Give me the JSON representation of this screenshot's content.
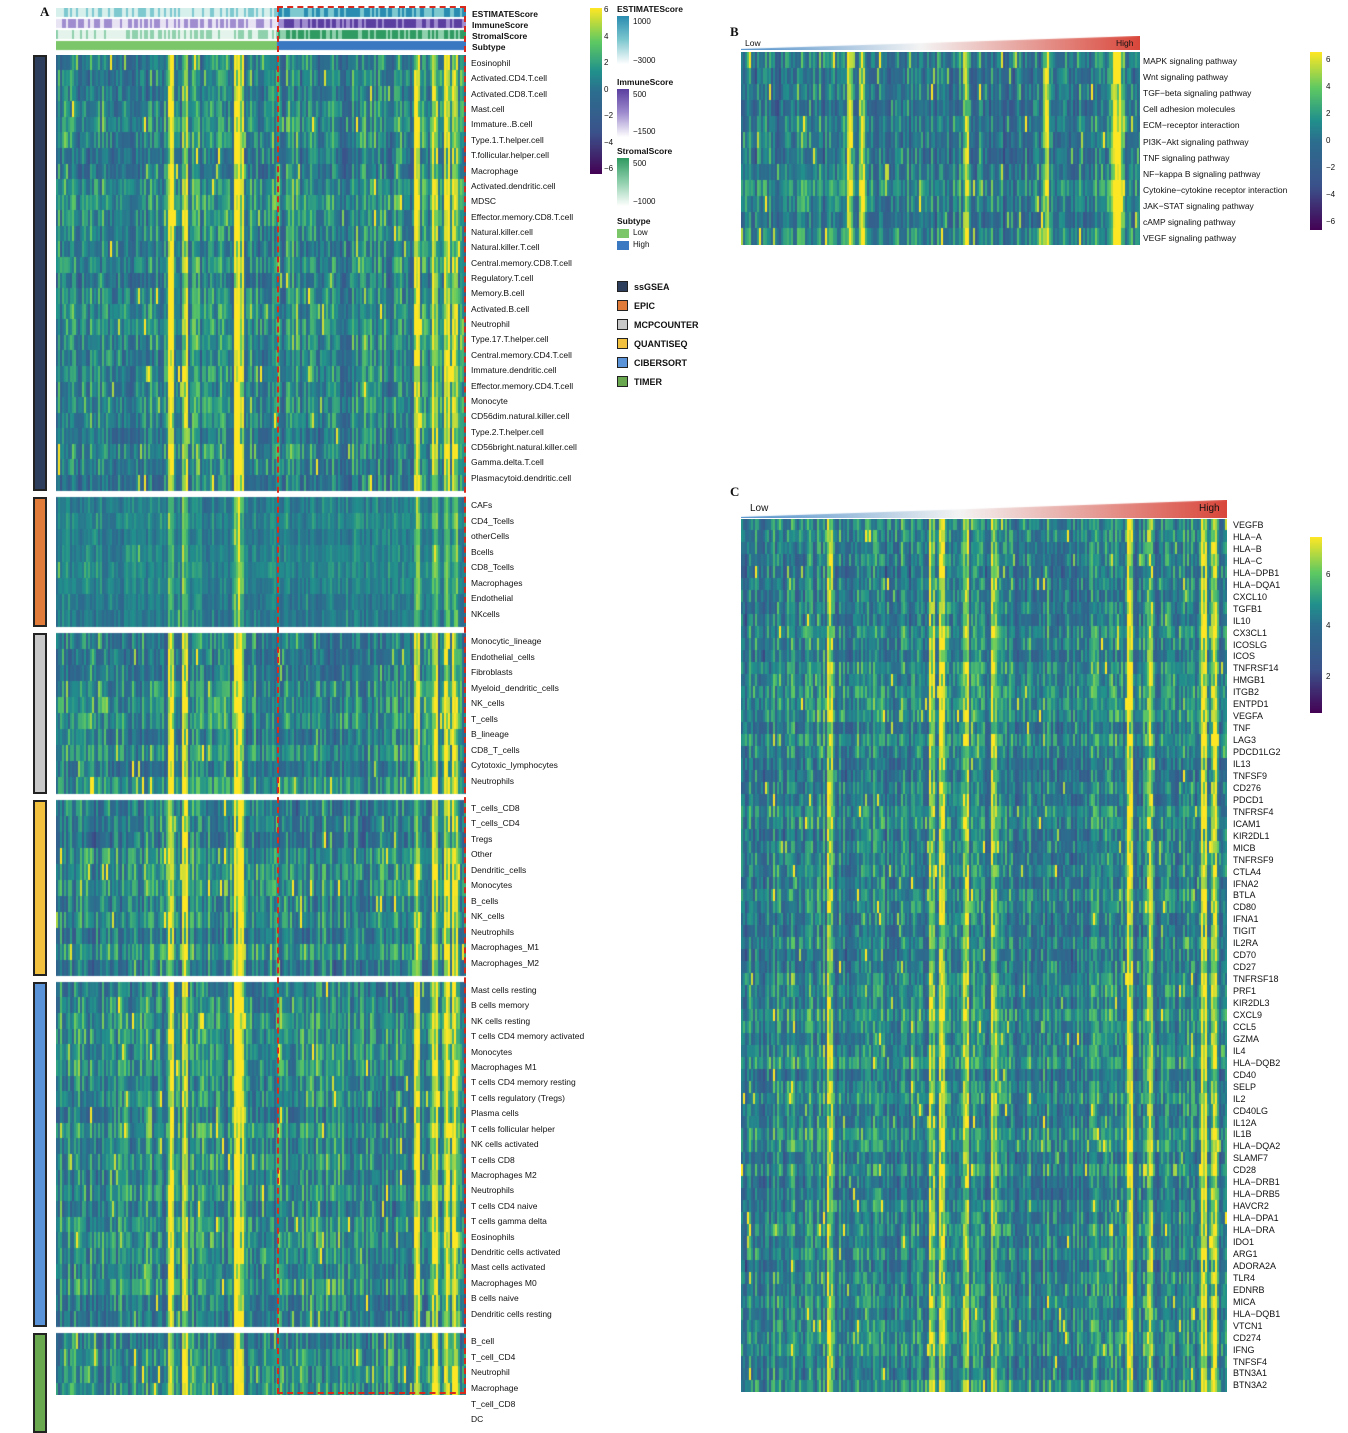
{
  "panels": {
    "A": {
      "letter": "A",
      "annotation_rows": [
        "ESTIMATEScore",
        "ImmuneScore",
        "StromalScore",
        "Subtype"
      ],
      "groups": [
        {
          "method": "ssGSEA",
          "color": "#2c3e5c",
          "rows": [
            "Eosinophil",
            "Activated.CD4.T.cell",
            "Activated.CD8.T.cell",
            "Mast.cell",
            "Immature..B.cell",
            "Type.1.T.helper.cell",
            "T.follicular.helper.cell",
            "Macrophage",
            "Activated.dendritic.cell",
            "MDSC",
            "Effector.memory.CD8.T.cell",
            "Natural.killer.cell",
            "Natural.killer.T.cell",
            "Central.memory.CD8.T.cell",
            "Regulatory.T.cell",
            "Memory.B.cell",
            "Activated.B.cell",
            "Neutrophil",
            "Type.17.T.helper.cell",
            "Central.memory.CD4.T.cell",
            "Immature.dendritic.cell",
            "Effector.memory.CD4.T.cell",
            "Monocyte",
            "CD56dim.natural.killer.cell",
            "Type.2.T.helper.cell",
            "CD56bright.natural.killer.cell",
            "Gamma.delta.T.cell",
            "Plasmacytoid.dendritic.cell"
          ]
        },
        {
          "method": "EPIC",
          "color": "#e07b39",
          "rows": [
            "CAFs",
            "CD4_Tcells",
            "otherCells",
            "Bcells",
            "CD8_Tcells",
            "Macrophages",
            "Endothelial",
            "NKcells"
          ]
        },
        {
          "method": "MCPCOUNTER",
          "color": "#c8c8c8",
          "rows": [
            "Monocytic_lineage",
            "Endothelial_cells",
            "Fibroblasts",
            "Myeloid_dendritic_cells",
            "NK_cells",
            "T_cells",
            "B_lineage",
            "CD8_T_cells",
            "Cytotoxic_lymphocytes",
            "Neutrophils"
          ]
        },
        {
          "method": "QUANTISEQ",
          "color": "#f2c140",
          "rows": [
            "T_cells_CD8",
            "T_cells_CD4",
            "Tregs",
            "Other",
            "Dendritic_cells",
            "Monocytes",
            "B_cells",
            "NK_cells",
            "Neutrophils",
            "Macrophages_M1",
            "Macrophages_M2"
          ]
        },
        {
          "method": "CIBERSORT",
          "color": "#5b93d8",
          "rows": [
            "Mast cells resting",
            "B cells memory",
            "NK cells resting",
            "T cells CD4 memory activated",
            "Monocytes",
            "Macrophages M1",
            "T cells CD4 memory resting",
            "T cells regulatory (Tregs)",
            "Plasma cells",
            "T cells follicular helper",
            "NK cells activated",
            "T cells CD8",
            "Macrophages M2",
            "Neutrophils",
            "T cells CD4 naive",
            "T cells gamma delta",
            "Eosinophils",
            "Dendritic cells activated",
            "Mast cells activated",
            "Macrophages M0",
            "B cells naive",
            "Dendritic cells resting"
          ]
        },
        {
          "method": "TIMER",
          "color": "#6aa84f",
          "rows": [
            "B_cell",
            "T_cell_CD4",
            "Neutrophil",
            "Macrophage",
            "T_cell_CD8",
            "DC"
          ]
        }
      ],
      "legend": {
        "scale_ticks": [
          "6",
          "4",
          "2",
          "0",
          "−2",
          "−4",
          "−6"
        ],
        "estimate": {
          "title": "ESTIMATEScore",
          "ticks": [
            "1000",
            "−3000"
          ],
          "color": "#4aa3c3"
        },
        "immune": {
          "title": "ImmuneScore",
          "ticks": [
            "500",
            "−1500"
          ],
          "color": "#7e57c2"
        },
        "stromal": {
          "title": "StromalScore",
          "ticks": [
            "500",
            "−1000"
          ],
          "color": "#3aa06a"
        },
        "subtype": {
          "title": "Subtype",
          "items": [
            {
              "label": "Low",
              "color": "#7cc66a"
            },
            {
              "label": "High",
              "color": "#3a78c2"
            }
          ]
        }
      }
    },
    "B": {
      "letter": "B",
      "low_label": "Low",
      "high_label": "High",
      "rows": [
        "MAPK signaling pathway",
        "Wnt signaling pathway",
        "TGF−beta signaling pathway",
        "Cell adhesion molecules",
        "ECM−receptor interaction",
        "PI3K−Akt signaling pathway",
        "TNF signaling pathway",
        "NF−kappa B signaling pathway",
        "Cytokine−cytokine receptor interaction",
        "JAK−STAT signaling pathway",
        "cAMP signaling pathway",
        "VEGF signaling pathway"
      ],
      "scale_ticks": [
        "6",
        "4",
        "2",
        "0",
        "−2",
        "−4",
        "−6"
      ]
    },
    "C": {
      "letter": "C",
      "low_label": "Low",
      "high_label": "High",
      "rows": [
        "VEGFB",
        "HLA−A",
        "HLA−B",
        "HLA−C",
        "HLA−DPB1",
        "HLA−DQA1",
        "CXCL10",
        "TGFB1",
        "IL10",
        "CX3CL1",
        "ICOSLG",
        "ICOS",
        "TNFRSF14",
        "HMGB1",
        "ITGB2",
        "ENTPD1",
        "VEGFA",
        "TNF",
        "LAG3",
        "PDCD1LG2",
        "IL13",
        "TNFSF9",
        "CD276",
        "PDCD1",
        "TNFRSF4",
        "ICAM1",
        "KIR2DL1",
        "MICB",
        "TNFRSF9",
        "CTLA4",
        "IFNA2",
        "BTLA",
        "CD80",
        "IFNA1",
        "TIGIT",
        "IL2RA",
        "CD70",
        "CD27",
        "TNFRSF18",
        "PRF1",
        "KIR2DL3",
        "CXCL9",
        "CCL5",
        "GZMA",
        "IL4",
        "HLA−DQB2",
        "CD40",
        "SELP",
        "IL2",
        "CD40LG",
        "IL12A",
        "IL1B",
        "HLA−DQA2",
        "SLAMF7",
        "CD28",
        "HLA−DRB1",
        "HLA−DRB5",
        "HAVCR2",
        "HLA−DPA1",
        "HLA−DRA",
        "IDO1",
        "ARG1",
        "ADORA2A",
        "TLR4",
        "EDNRB",
        "MICA",
        "HLA−DQB1",
        "VTCN1",
        "CD274",
        "IFNG",
        "TNFSF4",
        "BTN3A1",
        "BTN3A2"
      ],
      "scale_ticks": [
        "6",
        "4",
        "2"
      ]
    }
  }
}
